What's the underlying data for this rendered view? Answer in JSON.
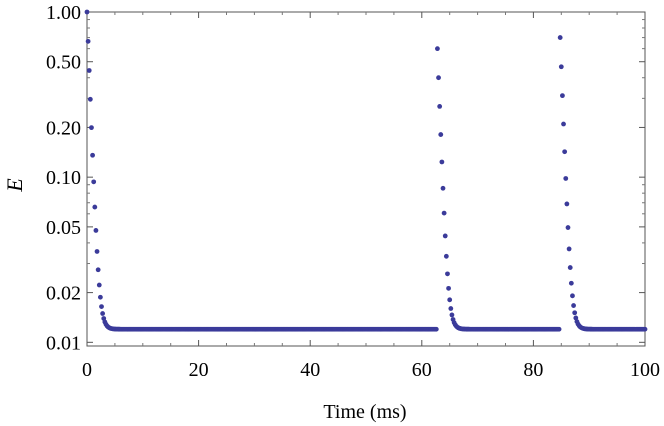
{
  "chart_data": {
    "type": "scatter",
    "title": "",
    "xlabel": "Time (ms)",
    "ylabel": "E",
    "x_ticks": [
      0,
      20,
      40,
      60,
      80,
      100
    ],
    "x_tick_labels": [
      "0",
      "20",
      "40",
      "60",
      "80",
      "100"
    ],
    "y_ticks": [
      0.01,
      0.02,
      0.05,
      0.1,
      0.2,
      0.5,
      1.0
    ],
    "y_tick_labels": [
      "0.01",
      "0.02",
      "0.05",
      "0.10",
      "0.20",
      "0.50",
      "1.00"
    ],
    "xlim": [
      0,
      100
    ],
    "ylim": [
      0.0095,
      1.0
    ],
    "y_scale": "log",
    "grid": false,
    "marker_color": "#3b3b9a",
    "baseline": 0.012,
    "sampling_interval_ms": 0.2,
    "decay_factor_per_sample": 0.66,
    "pulses": [
      {
        "start": 0.0,
        "peak": 1.0
      },
      {
        "start": 62.8,
        "peak": 0.6
      },
      {
        "start": 84.8,
        "peak": 0.7
      }
    ]
  }
}
